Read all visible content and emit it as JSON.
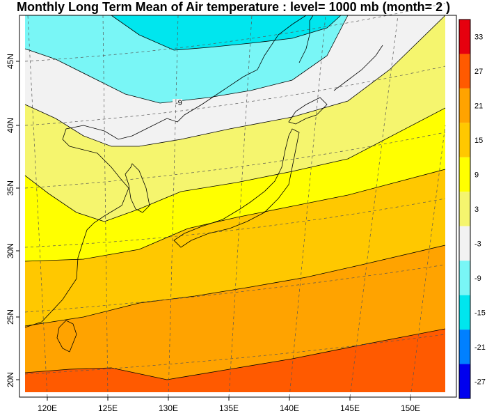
{
  "title": "Monthly Long Term Mean of Air temperature : level= 1000 mb (month= 2 )",
  "axes": {
    "x_labels": [
      "120E",
      "125E",
      "130E",
      "135E",
      "140E",
      "145E",
      "150E"
    ],
    "y_labels": [
      "20N",
      "25N",
      "30N",
      "35N",
      "40N",
      "45N"
    ]
  },
  "contour_label": "-9",
  "colorbar": {
    "labels": [
      "33",
      "27",
      "21",
      "15",
      "9",
      "3",
      "-3",
      "-9",
      "-15",
      "-21",
      "-27"
    ],
    "colors": [
      "#e6000e",
      "#ff5a00",
      "#ffa300",
      "#ffc800",
      "#ffff00",
      "#f5f56e",
      "#f2f2f2",
      "#79f6f6",
      "#00e6ee",
      "#0080ff",
      "#0000ee"
    ]
  },
  "field_colors": {
    "cyan": "#79f6f6",
    "white": "#f2f2f2",
    "lightyellow": "#f5f56e",
    "yellow": "#ffff00",
    "gold": "#ffc800",
    "orange": "#ffa300",
    "red_orange": "#ff5a00"
  }
}
